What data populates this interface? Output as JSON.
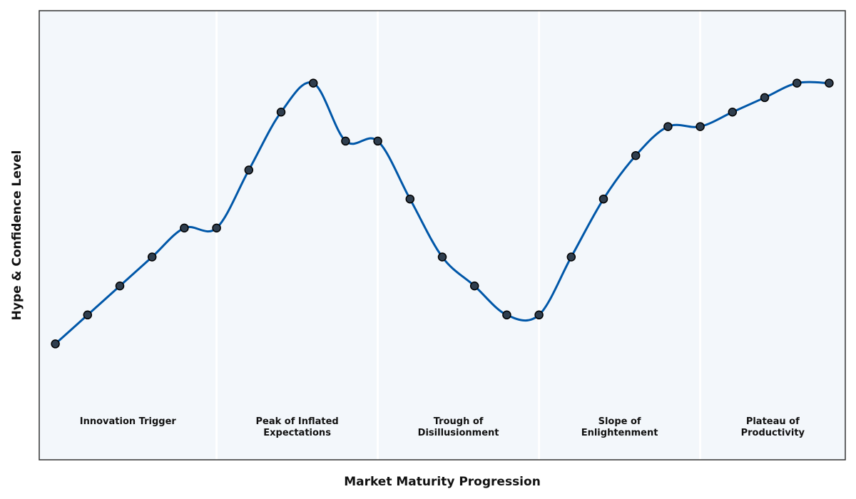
{
  "chart_data": {
    "type": "line",
    "title": "",
    "xlabel": "Market Maturity Progression",
    "ylabel": "Hype & Confidence Level",
    "xlim": [
      -0.5,
      24.5
    ],
    "ylim": [
      -8,
      23
    ],
    "grid": false,
    "x": [
      0,
      1,
      2,
      3,
      4,
      5,
      6,
      7,
      8,
      9,
      10,
      11,
      12,
      13,
      14,
      15,
      16,
      17,
      18,
      19,
      20,
      21,
      22,
      23,
      24
    ],
    "values": [
      0,
      2,
      4,
      6,
      8,
      8,
      12,
      16,
      18,
      14,
      14,
      10,
      6,
      4,
      2,
      2,
      6,
      10,
      13,
      15,
      15,
      16,
      17,
      18,
      18
    ],
    "phases": [
      {
        "id": "innovation",
        "line1": "Innovation Trigger",
        "line2": "",
        "start": -0.5,
        "end": 5
      },
      {
        "id": "peak",
        "line1": "Peak of Inflated",
        "line2": "Expectations",
        "start": 5,
        "end": 10
      },
      {
        "id": "trough",
        "line1": "Trough of",
        "line2": "Disillusionment",
        "start": 10,
        "end": 15
      },
      {
        "id": "slope",
        "line1": "Slope of",
        "line2": "Enlightenment",
        "start": 15,
        "end": 20
      },
      {
        "id": "plateau",
        "line1": "Plateau of",
        "line2": "Productivity",
        "start": 20,
        "end": 24.5
      }
    ],
    "colors": {
      "line": "#0057a8",
      "marker_fill": "#2f3e4e",
      "marker_edge": "#000000",
      "phase_bg": "#f3f7fb",
      "phase_divider": "#ffffff"
    }
  }
}
